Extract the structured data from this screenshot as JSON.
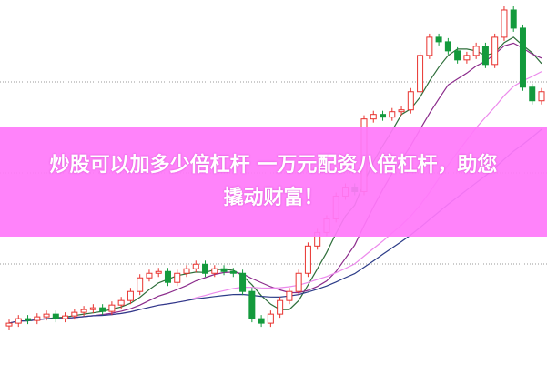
{
  "banner": {
    "line1": "炒股可以加多少倍杠杆 一万元配资八倍杠杆，助您",
    "line2": "撬动财富！"
  },
  "chart_data": {
    "type": "candlestick",
    "ylim": [
      0,
      400
    ],
    "grid": true,
    "colors": {
      "up": "#e8322e",
      "down": "#139a3c",
      "ma": [
        "#2e6e3a",
        "#8b2b8b",
        "#ec8aec",
        "#2c3c88"
      ],
      "banner": "#ff7afa"
    },
    "ma_periods": [
      5,
      10,
      20,
      30
    ],
    "ohlc": [
      [
        42,
        49,
        38,
        45
      ],
      [
        45,
        54,
        41,
        50
      ],
      [
        50,
        54,
        44,
        48
      ],
      [
        48,
        56,
        44,
        52
      ],
      [
        52,
        59,
        48,
        55
      ],
      [
        55,
        59,
        46,
        50
      ],
      [
        50,
        57,
        46,
        53
      ],
      [
        53,
        61,
        49,
        57
      ],
      [
        57,
        64,
        53,
        60
      ],
      [
        60,
        66,
        56,
        62
      ],
      [
        62,
        66,
        54,
        58
      ],
      [
        58,
        69,
        54,
        65
      ],
      [
        65,
        74,
        61,
        70
      ],
      [
        70,
        84,
        66,
        80
      ],
      [
        80,
        99,
        76,
        95
      ],
      [
        95,
        104,
        91,
        100
      ],
      [
        100,
        106,
        96,
        102
      ],
      [
        102,
        106,
        86,
        90
      ],
      [
        90,
        104,
        86,
        100
      ],
      [
        100,
        109,
        96,
        105
      ],
      [
        105,
        114,
        101,
        110
      ],
      [
        110,
        114,
        96,
        100
      ],
      [
        100,
        109,
        96,
        105
      ],
      [
        105,
        109,
        98,
        102
      ],
      [
        102,
        106,
        96,
        100
      ],
      [
        100,
        104,
        76,
        80
      ],
      [
        80,
        84,
        46,
        50
      ],
      [
        50,
        54,
        41,
        45
      ],
      [
        45,
        59,
        41,
        55
      ],
      [
        55,
        74,
        51,
        70
      ],
      [
        70,
        84,
        66,
        80
      ],
      [
        80,
        104,
        76,
        100
      ],
      [
        100,
        134,
        96,
        130
      ],
      [
        130,
        149,
        126,
        145
      ],
      [
        145,
        164,
        141,
        160
      ],
      [
        160,
        189,
        156,
        185
      ],
      [
        185,
        199,
        181,
        195
      ],
      [
        195,
        199,
        186,
        190
      ],
      [
        190,
        274,
        186,
        270
      ],
      [
        270,
        279,
        266,
        275
      ],
      [
        275,
        279,
        268,
        272
      ],
      [
        272,
        282,
        268,
        278
      ],
      [
        278,
        284,
        274,
        280
      ],
      [
        280,
        304,
        276,
        300
      ],
      [
        300,
        344,
        296,
        340
      ],
      [
        340,
        364,
        336,
        360
      ],
      [
        360,
        364,
        351,
        355
      ],
      [
        355,
        359,
        341,
        345
      ],
      [
        345,
        349,
        331,
        335
      ],
      [
        335,
        344,
        331,
        340
      ],
      [
        340,
        354,
        336,
        350
      ],
      [
        350,
        354,
        326,
        330
      ],
      [
        330,
        364,
        326,
        360
      ],
      [
        360,
        394,
        356,
        390
      ],
      [
        390,
        394,
        366,
        370
      ],
      [
        370,
        374,
        301,
        305
      ],
      [
        305,
        309,
        286,
        290
      ],
      [
        290,
        304,
        286,
        300
      ]
    ]
  }
}
